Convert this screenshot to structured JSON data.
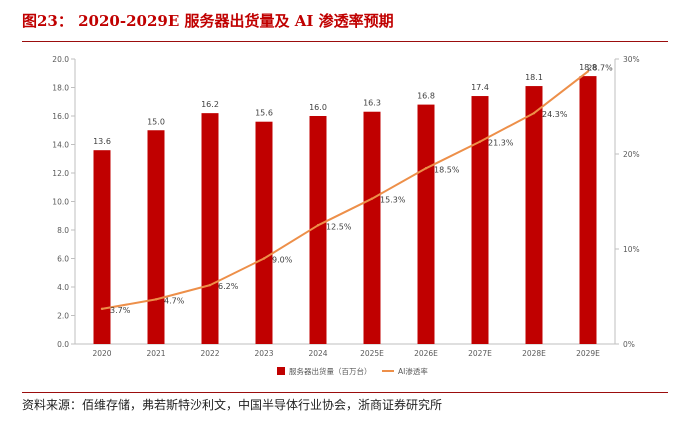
{
  "figure": {
    "title": "图23： 2020-2029E 服务器出货量及 AI 渗透率预期",
    "source": "资料来源：佰维存储，弗若斯特沙利文，中国半导体行业协会，浙商证券研究所"
  },
  "colors": {
    "bar": "#c00000",
    "line": "#ed8f49",
    "rule": "#9b0d0d",
    "axis_text": "#595959"
  },
  "chart_data": {
    "type": "bar",
    "categories": [
      "2020",
      "2021",
      "2022",
      "2023",
      "2024",
      "2025E",
      "2026E",
      "2027E",
      "2028E",
      "2029E"
    ],
    "series": [
      {
        "name": "服务器出货量（百万台）",
        "type": "bar",
        "axis": "left",
        "values": [
          13.6,
          15.0,
          16.2,
          15.6,
          16.0,
          16.3,
          16.8,
          17.4,
          18.1,
          18.8
        ],
        "labels": [
          "13.6",
          "15.0",
          "16.2",
          "15.6",
          "16.0",
          "16.3",
          "16.8",
          "17.4",
          "18.1",
          "18.8"
        ]
      },
      {
        "name": "AI渗透率",
        "type": "line",
        "axis": "right",
        "values": [
          3.7,
          4.7,
          6.2,
          9.0,
          12.5,
          15.3,
          18.5,
          21.3,
          24.3,
          28.7
        ],
        "labels": [
          "3.7%",
          "4.7%",
          "6.2%",
          "9.0%",
          "12.5%",
          "15.3%",
          "18.5%",
          "21.3%",
          "24.3%",
          "28.7%"
        ]
      }
    ],
    "y_left": {
      "min": 0,
      "max": 20,
      "ticks": [
        "0.0",
        "2.0",
        "4.0",
        "6.0",
        "8.0",
        "10.0",
        "12.0",
        "14.0",
        "16.0",
        "18.0",
        "20.0"
      ]
    },
    "y_right": {
      "min": 0,
      "max": 30,
      "ticks": [
        "0%",
        "10%",
        "20%",
        "30%"
      ]
    },
    "legend_position": "bottom-center",
    "grid": false
  }
}
